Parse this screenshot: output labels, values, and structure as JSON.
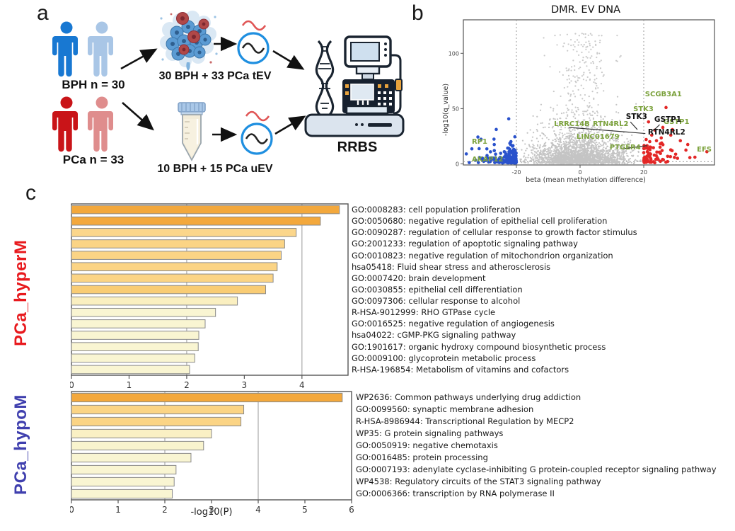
{
  "panel_a": {
    "label": "a",
    "bph_label": "BPH n = 30",
    "pca_label": "PCa n = 33",
    "tissue_caption": "30 BPH + 33 PCa tEV",
    "urine_caption": "10 BPH + 15 PCa uEV",
    "machine_caption": "RRBS",
    "colors": {
      "bph_primary": "#1878d2",
      "bph_secondary": "#a9c6e6",
      "pca_primary": "#c91418",
      "pca_secondary": "#df8d8d",
      "wave_circle": "#1f8fe0",
      "wave_red": "#e05555"
    }
  },
  "panel_b": {
    "label": "b"
  },
  "panel_c": {
    "label": "c"
  },
  "chart_data": [
    {
      "type": "scatter",
      "title": "DMR. EV DNA",
      "xlabel": "beta (mean methylation difference)",
      "ylabel": "-log10(q_value)",
      "xticks": [
        -20,
        0,
        20
      ],
      "yticks": [
        0,
        50,
        100
      ],
      "xlim": [
        -36.7,
        42.2
      ],
      "ylim": [
        0,
        130
      ],
      "vlines": [
        -20,
        20
      ],
      "hline": 2,
      "legend_position": "none",
      "grid": false,
      "colors": {
        "background": "#c4c4c4",
        "hypo": "#2a52cc",
        "hyper": "#e32726"
      },
      "point_groups": [
        {
          "name": "background",
          "color": "#c4c4c4",
          "r": 1.1,
          "count": 2400,
          "x_center": 0,
          "x_spread": 22,
          "y_decay": 9,
          "y_min": 0.3
        },
        {
          "name": "background-tail",
          "color": "#c9c9c9",
          "r": 1.1,
          "count": 260,
          "x_center": 1,
          "x_spread": 14,
          "y_uniform": [
            8,
            118
          ]
        },
        {
          "name": "hypo-blue",
          "color": "#2a52cc",
          "r": 2.3,
          "count": 220,
          "x_edge": -20,
          "x_dir": -1,
          "x_decay": 2.8,
          "y_decay": 3.5,
          "y_min": 0.8
        },
        {
          "name": "hypo-blue-outliers",
          "color": "#2a52cc",
          "r": 2.3,
          "count": 14,
          "x_uniform": [
            -34,
            -21
          ],
          "y_uniform": [
            4,
            27
          ]
        },
        {
          "name": "hyper-red",
          "color": "#e32726",
          "r": 2.3,
          "count": 62,
          "x_edge": 20,
          "x_dir": 1,
          "x_decay": 2.4,
          "y_decay": 8,
          "y_min": 1
        },
        {
          "name": "hyper-red-outliers",
          "color": "#e32726",
          "r": 2.3,
          "count": 16,
          "x_uniform": [
            21,
            40
          ],
          "y_uniform": [
            4,
            20
          ]
        },
        {
          "name": "hyper-red-high",
          "color": "#e32726",
          "r": 2.3,
          "points": [
            [
              27,
              51
            ],
            [
              21.5,
              38
            ],
            [
              23.5,
              30.5
            ],
            [
              26,
              33
            ],
            [
              28.5,
              26
            ],
            [
              31.5,
              21
            ],
            [
              24,
              21
            ],
            [
              22.5,
              26
            ],
            [
              29,
              31
            ],
            [
              25.5,
              23.5
            ]
          ]
        }
      ],
      "gene_labels": [
        {
          "text": "RP1",
          "color": "green",
          "beta": -34,
          "q": 18.2
        },
        {
          "text": "AKAP12",
          "color": "green",
          "beta": -34,
          "q": 2.2
        },
        {
          "text": "LRRC14B",
          "color": "green",
          "beta": -8.2,
          "q": 34.2
        },
        {
          "text": "RTN4RL2",
          "color": "green",
          "beta": 4.0,
          "q": 34.2
        },
        {
          "text": "LINC01679",
          "color": "green",
          "beta": -1.1,
          "q": 22.7
        },
        {
          "text": "PTGER4",
          "color": "green",
          "beta": 9.3,
          "q": 13.1
        },
        {
          "text": "STK3",
          "color": "green",
          "beta": 16.7,
          "q": 47.7
        },
        {
          "text": "GSTP1",
          "color": "green",
          "beta": 26.2,
          "q": 36.2
        },
        {
          "text": "SCGB3A1",
          "color": "green",
          "beta": 20.4,
          "q": 61.1
        },
        {
          "text": "EFS",
          "color": "green",
          "beta": 36.7,
          "q": 11.2
        },
        {
          "text": "STK3",
          "color": "black",
          "beta": 14.4,
          "q": 40.6
        },
        {
          "text": "GSTP1",
          "color": "black",
          "beta": 23.3,
          "q": 38.1
        },
        {
          "text": "RTN4RL2",
          "color": "black",
          "beta": 21.3,
          "q": 26.6
        }
      ],
      "callout_lines": [
        [
          [
            -3.5,
            33
          ],
          [
            20.5,
            27.5
          ]
        ],
        [
          [
            15.8,
            38
          ],
          [
            18,
            31
          ]
        ],
        [
          [
            25,
            35.5
          ],
          [
            23,
            30
          ]
        ],
        [
          [
            13,
            13.5
          ],
          [
            21,
            16.5
          ]
        ]
      ]
    },
    {
      "type": "bar",
      "orientation": "horizontal",
      "group": "PCa_hyperM",
      "group_color": "#e8191d",
      "xlabel": "",
      "xticks": [
        0,
        1,
        2,
        3,
        4
      ],
      "xlim": [
        0,
        4.8
      ],
      "gridlines": [
        2,
        4
      ],
      "categories": [
        "GO:0008283: cell population proliferation",
        "GO:0050680: negative regulation of epithelial cell proliferation",
        "GO:0090287: regulation of cellular response to growth factor stimulus",
        "GO:2001233: regulation of apoptotic signaling pathway",
        "GO:0010823: negative regulation of mitochondrion organization",
        "hsa05418: Fluid shear stress and atherosclerosis",
        "GO:0007420: brain development",
        "GO:0030855: epithelial cell differentiation",
        "GO:0097306: cellular response to alcohol",
        "R-HSA-9012999: RHO GTPase cycle",
        "GO:0016525: negative regulation of angiogenesis",
        "hsa04022: cGMP-PKG signaling pathway",
        "GO:1901617: organic hydroxy compound biosynthetic process",
        "GO:0009100: glycoprotein metabolic process",
        "R-HSA-196854: Metabolism of vitamins and cofactors"
      ],
      "values": [
        4.65,
        4.32,
        3.9,
        3.7,
        3.64,
        3.57,
        3.5,
        3.37,
        2.88,
        2.5,
        2.32,
        2.21,
        2.2,
        2.14,
        2.05
      ],
      "bar_colors": [
        "#F3A83C",
        "#F3A83C",
        "#FBD68B",
        "#FBD485",
        "#FBD485",
        "#FBD485",
        "#FBD485",
        "#F9CC74",
        "#FAEFC0",
        "#F9F5D2",
        "#F9F5D2",
        "#F9F5D2",
        "#F9F5D2",
        "#F9F5D2",
        "#F9F5D2"
      ]
    },
    {
      "type": "bar",
      "orientation": "horizontal",
      "group": "PCa_hypoM",
      "group_color": "#3f3fae",
      "xlabel": "-log10(P)",
      "xticks": [
        0,
        1,
        2,
        3,
        4,
        5,
        6
      ],
      "xlim": [
        0,
        6
      ],
      "gridlines": [
        2,
        4
      ],
      "categories": [
        "WP2636: Common pathways underlying drug addiction",
        "GO:0099560: synaptic membrane adhesion",
        "R-HSA-8986944: Transcriptional Regulation by MECP2",
        "WP35: G protein signaling pathways",
        "GO:0050919: negative chemotaxis",
        "GO:0016485: protein processing",
        "GO:0007193: adenylate cyclase-inhibiting G protein-coupled receptor signaling pathway",
        "WP4538: Regulatory circuits of the STAT3 signaling pathway",
        "GO:0006366: transcription by RNA polymerase II"
      ],
      "values": [
        5.8,
        3.69,
        3.63,
        3.0,
        2.83,
        2.56,
        2.24,
        2.2,
        2.16
      ],
      "bar_colors": [
        "#F3A83C",
        "#FBD485",
        "#FBD485",
        "#FAF0C4",
        "#F9F4CE",
        "#F9F5D2",
        "#F9F5D2",
        "#F9F5D2",
        "#F9F5D2"
      ]
    }
  ]
}
